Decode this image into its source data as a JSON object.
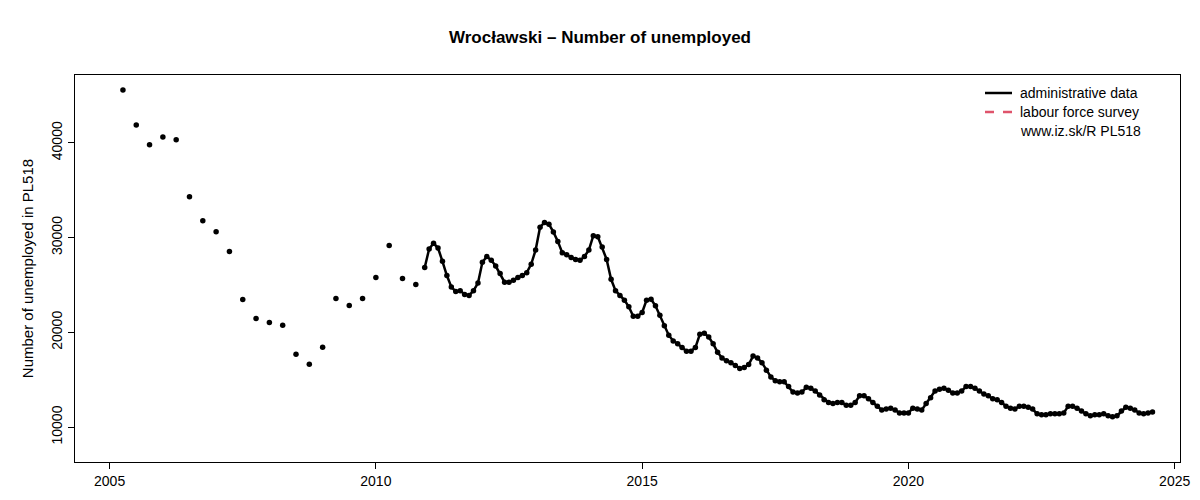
{
  "chart_data": {
    "type": "line",
    "title": "Wrocławski – Number of unemployed",
    "y_label": "Number of unemployed in PL518",
    "xlim": [
      2004.35,
      2025.1
    ],
    "xticks": [
      2005,
      2010,
      2015,
      2020,
      2025
    ],
    "ylim": [
      6320,
      47160
    ],
    "yticks": [
      10000,
      20000,
      30000,
      40000
    ],
    "grid": false,
    "legend": "top right",
    "annotations": [
      "www.iz.sk/R PL518"
    ],
    "series": [
      {
        "name": "administrative data",
        "color": "#000000",
        "line_style": "solid",
        "marker": "circle",
        "x": [
          2005.25,
          2005.375,
          2005.5,
          2005.625,
          2005.75,
          2005.875,
          2006,
          2006.125,
          2006.25,
          2006.375,
          2006.5,
          2006.625,
          2006.75,
          2006.875,
          2007,
          2007.125,
          2007.25,
          2007.375,
          2007.5,
          2007.625,
          2007.75,
          2007.875,
          2008,
          2008.125,
          2008.25,
          2008.375,
          2008.5,
          2008.625,
          2008.75,
          2008.875,
          2009,
          2009.125,
          2009.25,
          2009.375,
          2009.5,
          2009.625,
          2009.75,
          2009.875,
          2010,
          2010.125,
          2010.25,
          2010.375,
          2010.5,
          2010.625,
          2010.75,
          2010.833,
          2010.917,
          2011,
          2011.083,
          2011.167,
          2011.25,
          2011.333,
          2011.417,
          2011.5,
          2011.583,
          2011.667,
          2011.75,
          2011.833,
          2011.917,
          2012,
          2012.083,
          2012.167,
          2012.25,
          2012.333,
          2012.417,
          2012.5,
          2012.583,
          2012.667,
          2012.75,
          2012.833,
          2012.917,
          2013,
          2013.083,
          2013.167,
          2013.25,
          2013.333,
          2013.417,
          2013.5,
          2013.583,
          2013.667,
          2013.75,
          2013.833,
          2013.917,
          2014,
          2014.083,
          2014.167,
          2014.25,
          2014.333,
          2014.417,
          2014.5,
          2014.583,
          2014.667,
          2014.75,
          2014.833,
          2014.917,
          2015,
          2015.083,
          2015.167,
          2015.25,
          2015.333,
          2015.417,
          2015.5,
          2015.583,
          2015.667,
          2015.75,
          2015.833,
          2015.917,
          2016,
          2016.083,
          2016.167,
          2016.25,
          2016.333,
          2016.417,
          2016.5,
          2016.583,
          2016.667,
          2016.75,
          2016.833,
          2016.917,
          2017,
          2017.083,
          2017.167,
          2017.25,
          2017.333,
          2017.417,
          2017.5,
          2017.583,
          2017.667,
          2017.75,
          2017.833,
          2017.917,
          2018,
          2018.083,
          2018.167,
          2018.25,
          2018.333,
          2018.417,
          2018.5,
          2018.583,
          2018.667,
          2018.75,
          2018.833,
          2018.917,
          2019,
          2019.083,
          2019.167,
          2019.25,
          2019.333,
          2019.417,
          2019.5,
          2019.583,
          2019.667,
          2019.75,
          2019.833,
          2019.917,
          2020,
          2020.083,
          2020.167,
          2020.25,
          2020.333,
          2020.417,
          2020.5,
          2020.583,
          2020.667,
          2020.75,
          2020.833,
          2020.917,
          2021,
          2021.083,
          2021.167,
          2021.25,
          2021.333,
          2021.417,
          2021.5,
          2021.583,
          2021.667,
          2021.75,
          2021.833,
          2021.917,
          2022,
          2022.083,
          2022.167,
          2022.25,
          2022.333,
          2022.417,
          2022.5,
          2022.583,
          2022.667,
          2022.75,
          2022.833,
          2022.917,
          2023,
          2023.083,
          2023.167,
          2023.25,
          2023.333,
          2023.417,
          2023.5,
          2023.583,
          2023.667,
          2023.75,
          2023.833,
          2023.917,
          2024,
          2024.083,
          2024.167,
          2024.25,
          2024.333,
          2024.417,
          2024.5,
          2024.583
        ],
        "values": [
          45580,
          null,
          41890,
          null,
          39790,
          null,
          40630,
          null,
          40320,
          null,
          34320,
          null,
          31790,
          null,
          30630,
          null,
          28530,
          null,
          23470,
          null,
          21470,
          null,
          21050,
          null,
          20740,
          null,
          17680,
          null,
          16630,
          null,
          18420,
          null,
          23580,
          null,
          22840,
          null,
          23580,
          null,
          25790,
          null,
          29160,
          null,
          25680,
          null,
          25050,
          null,
          26840,
          28800,
          29400,
          28900,
          27500,
          26000,
          24800,
          24300,
          24400,
          24000,
          23900,
          24400,
          25200,
          27400,
          28000,
          27600,
          27000,
          26200,
          25300,
          25300,
          25500,
          25800,
          26000,
          26300,
          27200,
          28700,
          31100,
          31600,
          31400,
          30600,
          29600,
          28400,
          28200,
          27900,
          27700,
          27600,
          28000,
          28700,
          30200,
          30100,
          29000,
          27700,
          25600,
          24400,
          23900,
          23400,
          22700,
          21700,
          21700,
          22100,
          23400,
          23500,
          22800,
          21800,
          20700,
          19700,
          19100,
          18800,
          18400,
          18000,
          18000,
          18400,
          19800,
          19900,
          19500,
          18800,
          17900,
          17300,
          17000,
          16800,
          16500,
          16200,
          16300,
          16600,
          17500,
          17300,
          16800,
          16000,
          15300,
          14900,
          14800,
          14800,
          14300,
          13700,
          13600,
          13700,
          14200,
          14100,
          13800,
          13400,
          12900,
          12600,
          12500,
          12600,
          12600,
          12300,
          12300,
          12600,
          13300,
          13300,
          13000,
          12600,
          12200,
          11800,
          11900,
          12000,
          11800,
          11500,
          11500,
          11500,
          12000,
          11900,
          11800,
          12500,
          13100,
          13800,
          14000,
          14100,
          13900,
          13600,
          13600,
          13800,
          14300,
          14300,
          14100,
          13800,
          13500,
          13300,
          13000,
          12900,
          12600,
          12200,
          12000,
          11900,
          12200,
          12200,
          12100,
          11900,
          11400,
          11300,
          11300,
          11400,
          11400,
          11400,
          11500,
          12200,
          12200,
          12000,
          11700,
          11400,
          11200,
          11300,
          11300,
          11400,
          11200,
          11100,
          11200,
          11700,
          12100,
          12000,
          11800,
          11500,
          11400,
          11500,
          11600
        ]
      },
      {
        "name": "labour force survey",
        "color": "#df536b",
        "line_style": "dash",
        "x": [],
        "values": []
      }
    ]
  }
}
